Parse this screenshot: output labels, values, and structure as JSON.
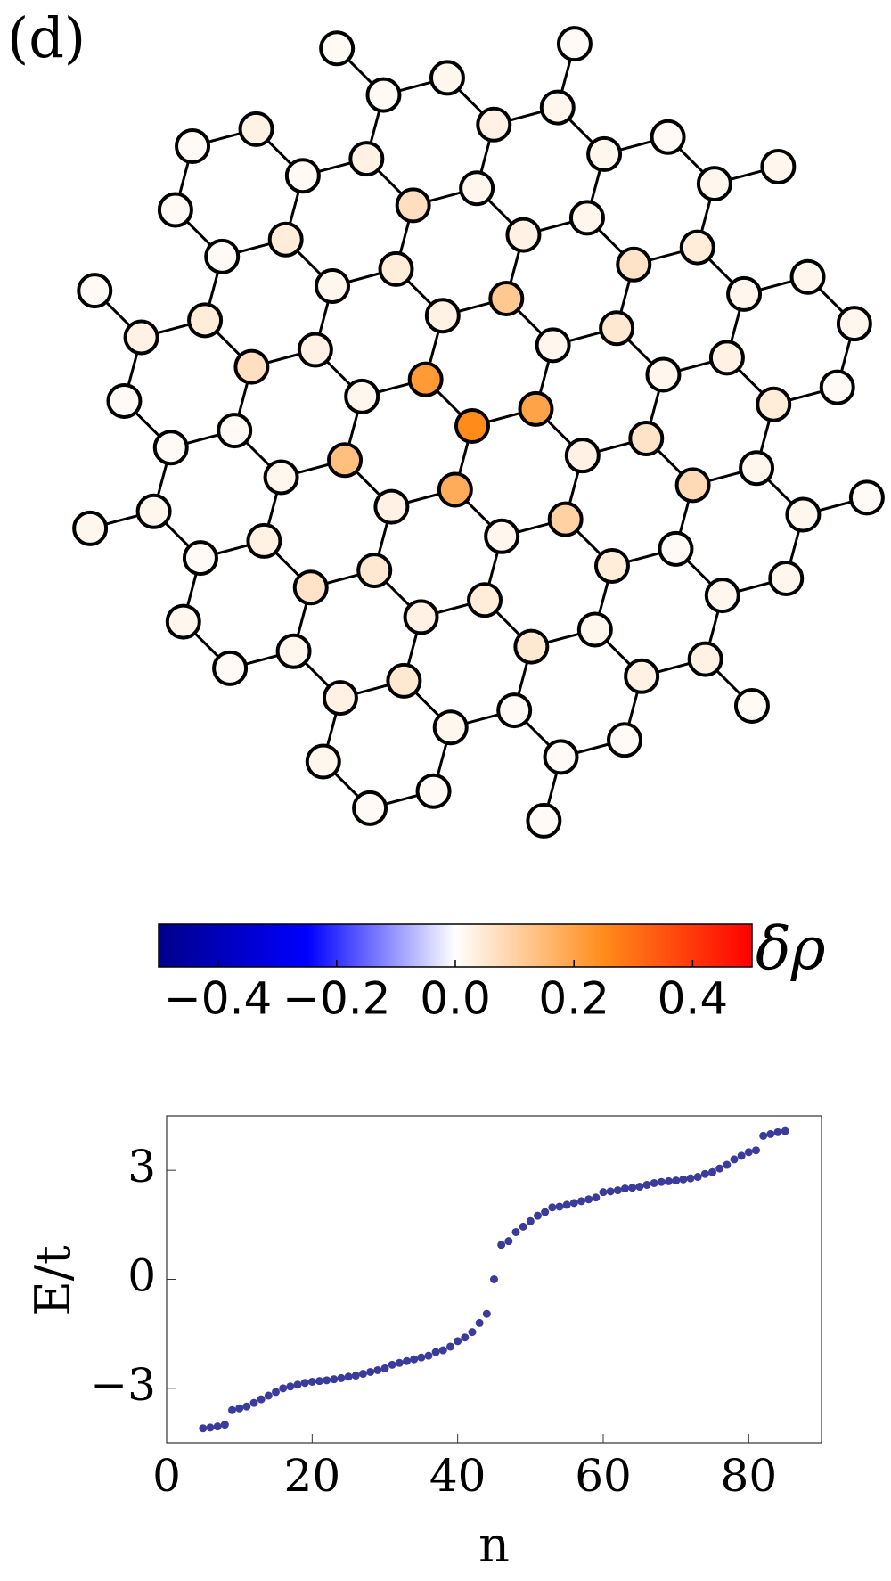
{
  "panel_label": "(d)",
  "chart_data": [
    {
      "type": "graph",
      "values": [
        0.25,
        0.22,
        0.2,
        0.18,
        0.03,
        0.02,
        0.03,
        0.02,
        0.03,
        0.02,
        0.12,
        0.1,
        0.14,
        0.04,
        0.05,
        0.03,
        0.06,
        0.04,
        0.05,
        0.02,
        0.03,
        0.02,
        0.04,
        0.03,
        0.02,
        0.07,
        0.06,
        0.08,
        0.05,
        0.06,
        0.07,
        0.02,
        0.01,
        0.02,
        0.03,
        0.01,
        0.02,
        0.04,
        0.03,
        0.05,
        0.04,
        0.03,
        0.04,
        0.02,
        0.01,
        0.02,
        0.01,
        0.02,
        0.01,
        0.03,
        0.02,
        0.04,
        0.03,
        0.02,
        0.03,
        0.01,
        0.02,
        0.01,
        0.02,
        0.03,
        0.02,
        0.01,
        0.02,
        0.01,
        0.01,
        0.02,
        0.03,
        0.02,
        0.01,
        0.02,
        0.01,
        0.02,
        0.01,
        0.01,
        0.02,
        0.01,
        0.03,
        0.01,
        0.02,
        0.01,
        0.01,
        0.02,
        0.01,
        0.01,
        0.02,
        0.01,
        0.01,
        0.02,
        0.01,
        0.01
      ],
      "clim": [
        -0.5,
        0.5
      ],
      "cticks": [
        {
          "value": -0.4,
          "label": "−0.4"
        },
        {
          "value": -0.2,
          "label": "−0.2"
        },
        {
          "value": 0,
          "label": "0.0"
        },
        0.2,
        0.4
      ],
      "colorbar_label": "δρ",
      "colormap": [
        "#00008b",
        "#0000ff",
        "#ffffff",
        "#ff8c1a",
        "#ff0000"
      ]
    },
    {
      "type": "scatter",
      "x_label": "n",
      "y_label": "E/t",
      "color": "#3b3b9b",
      "x": [
        5,
        6,
        7,
        8,
        9,
        10,
        11,
        12,
        13,
        14,
        15,
        16,
        17,
        18,
        19,
        20,
        21,
        22,
        23,
        24,
        25,
        26,
        27,
        28,
        29,
        30,
        31,
        32,
        33,
        34,
        35,
        36,
        37,
        38,
        39,
        40,
        41,
        42,
        43,
        44,
        45,
        46,
        47,
        48,
        49,
        50,
        51,
        52,
        53,
        54,
        55,
        56,
        57,
        58,
        59,
        60,
        61,
        62,
        63,
        64,
        65,
        66,
        67,
        68,
        69,
        70,
        71,
        72,
        73,
        74,
        75,
        76,
        77,
        78,
        79,
        80,
        81,
        82,
        83,
        84,
        85
      ],
      "values": [
        -4.1,
        -4.08,
        -4.05,
        -4.0,
        -3.6,
        -3.55,
        -3.5,
        -3.4,
        -3.3,
        -3.2,
        -3.1,
        -3.0,
        -2.95,
        -2.9,
        -2.85,
        -2.82,
        -2.8,
        -2.78,
        -2.75,
        -2.72,
        -2.68,
        -2.65,
        -2.6,
        -2.55,
        -2.5,
        -2.45,
        -2.35,
        -2.3,
        -2.25,
        -2.2,
        -2.15,
        -2.1,
        -2.0,
        -1.95,
        -1.85,
        -1.7,
        -1.6,
        -1.45,
        -1.2,
        -0.95,
        0.0,
        0.95,
        1.05,
        1.3,
        1.45,
        1.6,
        1.75,
        1.85,
        1.98,
        2.0,
        2.05,
        2.1,
        2.15,
        2.2,
        2.25,
        2.4,
        2.42,
        2.45,
        2.5,
        2.52,
        2.55,
        2.6,
        2.65,
        2.68,
        2.7,
        2.72,
        2.75,
        2.78,
        2.82,
        2.9,
        2.95,
        3.05,
        3.15,
        3.3,
        3.4,
        3.5,
        3.55,
        3.95,
        4.0,
        4.05,
        4.08
      ],
      "xlim": [
        0,
        90
      ],
      "xticks": [
        0,
        20,
        40,
        60,
        80
      ],
      "ylim": [
        -4.5,
        4.5
      ],
      "yticks": [
        {
          "value": -3,
          "label": "−3"
        },
        0,
        3
      ]
    }
  ]
}
